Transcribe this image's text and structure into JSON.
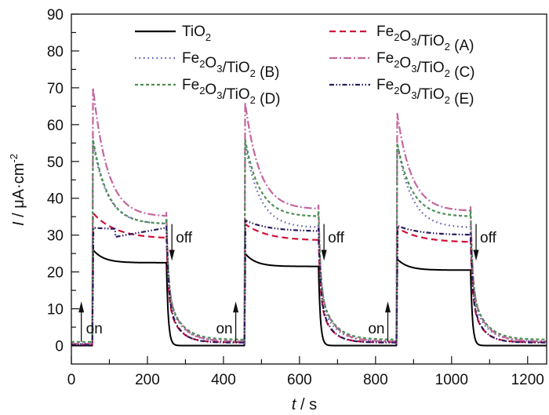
{
  "chart_data": {
    "type": "line",
    "title": "",
    "xlabel": {
      "italic": "t",
      "rest": " / s"
    },
    "ylabel": {
      "italic": "I",
      "rest": " / μA·cm",
      "sup": "-2"
    },
    "xlim": [
      0,
      1250
    ],
    "ylim": [
      -5,
      90
    ],
    "xticks": [
      0,
      200,
      400,
      600,
      800,
      1000,
      1200
    ],
    "xticks_minor_step": 100,
    "yticks": [
      0,
      10,
      20,
      30,
      40,
      50,
      60,
      70,
      80,
      90
    ],
    "yticks_minor_step": 5,
    "grid": false,
    "legend_position": "top",
    "light_cycles": [
      {
        "on": 55,
        "off": 250
      },
      {
        "on": 455,
        "off": 650
      },
      {
        "on": 855,
        "off": 1050
      }
    ],
    "annotations": [
      {
        "text": "on",
        "x": 55,
        "arrow": "up"
      },
      {
        "text": "off",
        "x": 250,
        "arrow": "down"
      },
      {
        "text": "on",
        "x": 455,
        "arrow": "up"
      },
      {
        "text": "off",
        "x": 650,
        "arrow": "down"
      },
      {
        "text": "on",
        "x": 855,
        "arrow": "up"
      },
      {
        "text": "off",
        "x": 1050,
        "arrow": "down"
      }
    ],
    "series": [
      {
        "name": "TiO2",
        "label": {
          "parts": [
            [
              "Ti",
              ""
            ],
            [
              "O",
              ""
            ],
            [
              "2",
              "sub"
            ]
          ]
        },
        "color": "#000000",
        "dash": "solid",
        "dark": 0,
        "peaks": [
          26,
          25,
          23.5
        ],
        "steady": [
          22.5,
          21.5,
          20.5
        ]
      },
      {
        "name": "Fe2O3/TiO2 (A)",
        "label": {
          "parts": [
            [
              "Fe",
              ""
            ],
            [
              "2",
              "sub"
            ],
            [
              "O",
              ""
            ],
            [
              "3",
              "sub"
            ],
            [
              "/TiO",
              ""
            ],
            [
              "2",
              "sub"
            ],
            [
              " (A)",
              ""
            ]
          ]
        },
        "color": "#d0103a",
        "dash": "dashed",
        "dark": 0.3,
        "peaks": [
          36,
          33,
          32
        ],
        "steady": [
          29,
          28.5,
          28
        ]
      },
      {
        "name": "Fe2O3/TiO2 (B)",
        "label": {
          "parts": [
            [
              "Fe",
              ""
            ],
            [
              "2",
              "sub"
            ],
            [
              "O",
              ""
            ],
            [
              "3",
              "sub"
            ],
            [
              "/TiO",
              ""
            ],
            [
              "2",
              "sub"
            ],
            [
              " (B)",
              ""
            ]
          ]
        },
        "color": "#5a5aa8",
        "dash": "dotted",
        "dark": 0.5,
        "peaks": [
          55,
          55,
          55
        ],
        "steady": [
          33,
          32,
          32
        ]
      },
      {
        "name": "Fe2O3/TiO2 (C)",
        "label": {
          "parts": [
            [
              "Fe",
              ""
            ],
            [
              "2",
              "sub"
            ],
            [
              "O",
              ""
            ],
            [
              "3",
              "sub"
            ],
            [
              "/TiO",
              ""
            ],
            [
              "2",
              "sub"
            ],
            [
              " (C)",
              ""
            ]
          ]
        },
        "color": "#c4679c",
        "dash": "dashdot",
        "dark": 0.5,
        "peaks": [
          70,
          66,
          63
        ],
        "steady": [
          35,
          37,
          36.5
        ]
      },
      {
        "name": "Fe2O3/TiO2 (D)",
        "label": {
          "parts": [
            [
              "Fe",
              ""
            ],
            [
              "2",
              "sub"
            ],
            [
              "O",
              ""
            ],
            [
              "3",
              "sub"
            ],
            [
              "/TiO",
              ""
            ],
            [
              "2",
              "sub"
            ],
            [
              " (D)",
              ""
            ]
          ]
        },
        "color": "#4e8f57",
        "dash": "short-dashed",
        "dark": 1.0,
        "peaks": [
          56,
          56,
          55
        ],
        "steady": [
          33,
          35,
          35
        ]
      },
      {
        "name": "Fe2O3/TiO2 (E)",
        "label": {
          "parts": [
            [
              "Fe",
              ""
            ],
            [
              "2",
              "sub"
            ],
            [
              "O",
              ""
            ],
            [
              "3",
              "sub"
            ],
            [
              "/TiO",
              ""
            ],
            [
              "2",
              "sub"
            ],
            [
              " (E)",
              ""
            ]
          ]
        },
        "color": "#2a1a5e",
        "dash": "dashdotdot",
        "dark": 0.2,
        "peaks": [
          32,
          34,
          32.5
        ],
        "steady": [
          31.5,
          31,
          30
        ]
      }
    ]
  }
}
